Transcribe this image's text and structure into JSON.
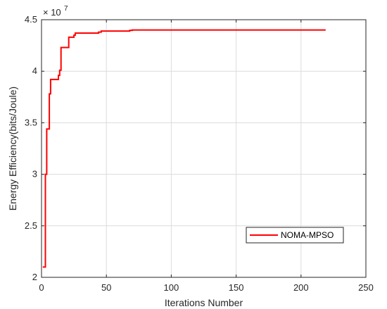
{
  "chart_data": {
    "type": "line",
    "title": "",
    "xlabel": "Iterations Number",
    "ylabel": "Energy Efficiency(bits/Joule)",
    "y_exponent_label": "× 10",
    "y_exponent_power": "7",
    "xlim": [
      0,
      250
    ],
    "ylim": [
      2,
      4.5
    ],
    "y_scale_factor": 10000000,
    "x_ticks": [
      0,
      50,
      100,
      150,
      200,
      250
    ],
    "x_tick_labels": [
      "0",
      "50",
      "100",
      "150",
      "200",
      "250"
    ],
    "y_ticks": [
      2,
      2.5,
      3,
      3.5,
      4,
      4.5
    ],
    "y_tick_labels": [
      "2",
      "2.5",
      "3",
      "3.5",
      "4",
      "4.5"
    ],
    "grid": true,
    "legend_position": "bottom-right",
    "series": [
      {
        "name": "NOMA-MPSO",
        "color": "#ff0000",
        "x": [
          1,
          3,
          3,
          4,
          4,
          6,
          6,
          7,
          7,
          10,
          10,
          13,
          13,
          14,
          14,
          15,
          15,
          21,
          21,
          25,
          25,
          26,
          26,
          44,
          44,
          46,
          46,
          48,
          48,
          68,
          68,
          70,
          70,
          72,
          72,
          219
        ],
        "y": [
          2.1,
          2.1,
          3.0,
          3.0,
          3.44,
          3.44,
          3.78,
          3.78,
          3.92,
          3.92,
          3.92,
          3.92,
          3.96,
          3.96,
          4.01,
          4.01,
          4.23,
          4.23,
          4.33,
          4.33,
          4.35,
          4.35,
          4.37,
          4.37,
          4.38,
          4.38,
          4.39,
          4.39,
          4.39,
          4.39,
          4.397,
          4.397,
          4.4,
          4.4,
          4.4,
          4.4
        ]
      }
    ]
  }
}
